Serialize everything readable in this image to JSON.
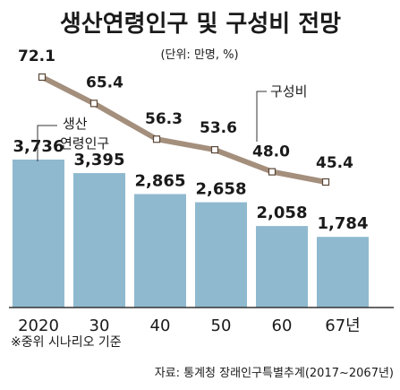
{
  "chart_data": {
    "type": "bar+line",
    "title": "생산연령인구 및 구성비 전망",
    "unit": "(단위: 만명, %)",
    "categories": [
      "2020",
      "30",
      "40",
      "50",
      "60",
      "67년"
    ],
    "series": [
      {
        "name": "생산 연령인구",
        "name_lines": [
          "생산",
          "연령인구"
        ],
        "type": "bar",
        "values": [
          3736,
          3395,
          2865,
          2658,
          2058,
          1784
        ],
        "labels": [
          "3,736",
          "3,395",
          "2,865",
          "2,658",
          "2,058",
          "1,784"
        ]
      },
      {
        "name": "구성비",
        "type": "line",
        "values": [
          72.1,
          65.4,
          56.3,
          53.6,
          48.0,
          45.4
        ],
        "labels": [
          "72.1",
          "65.4",
          "56.3",
          "53.6",
          "48.0",
          "45.4"
        ]
      }
    ],
    "note": "※중위 시나리오 기준",
    "source": "자료: 통계청 장래인구특별추계(2017~2067년)",
    "colors": {
      "bar": "#8fb9cf",
      "line": "#a48f7d",
      "marker_fill": "#ffffff",
      "marker_stroke": "#5a4636",
      "axis": "#333333",
      "leader": "#333333"
    }
  }
}
